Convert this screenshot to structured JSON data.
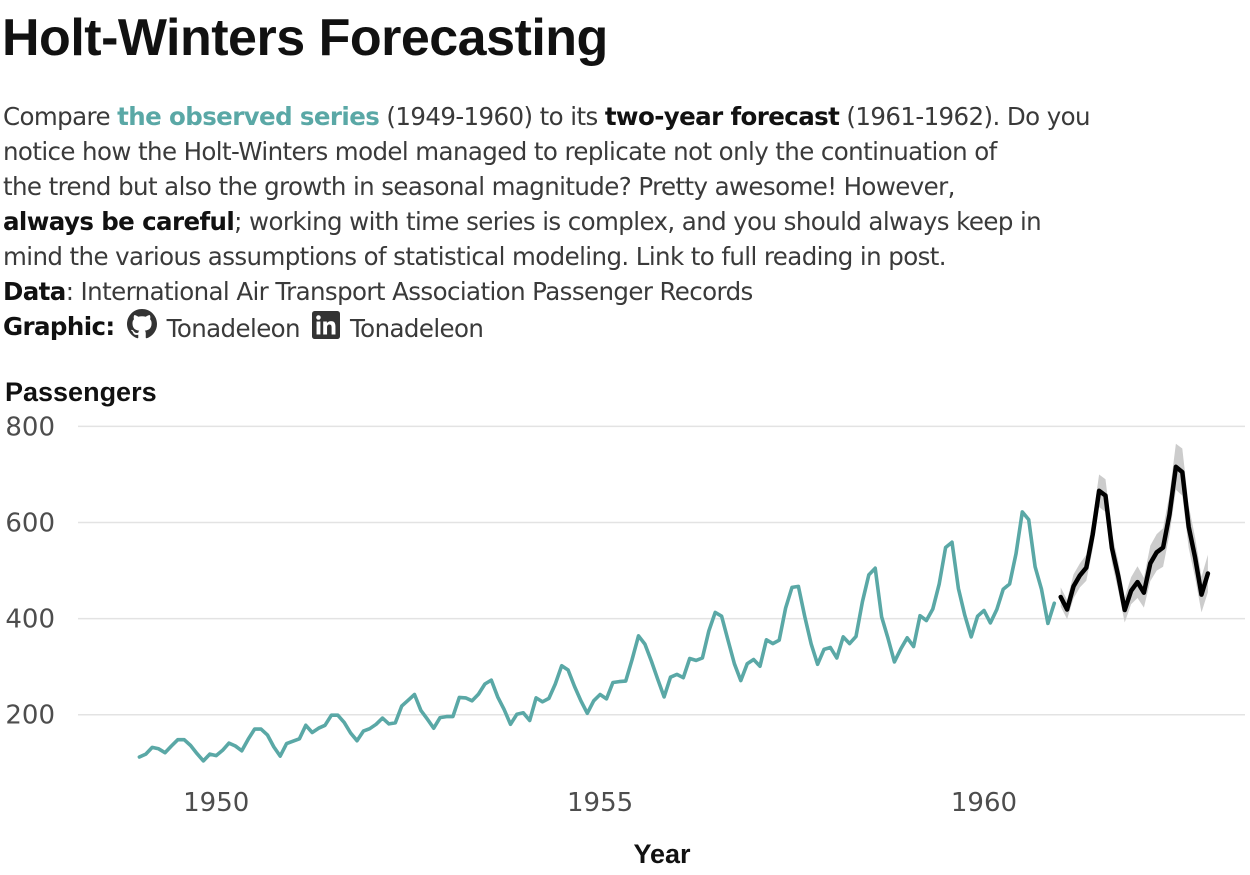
{
  "title": "Holt-Winters Forecasting",
  "subtitle": {
    "l1_a": "Compare ",
    "l1_b": "the observed series",
    "l1_c": " (1949-1960) to its ",
    "l1_d": "two-year forecast",
    "l1_e": " (1961-1962). Do you",
    "l2": "notice how the Holt-Winters model managed to replicate not only the continuation of",
    "l3": "the trend but also the growth in seasonal magnitude? Pretty awesome! However,",
    "l4_a": "always be careful",
    "l4_b": "; working with time series is complex, and you should always keep in",
    "l5": "mind the various assumptions of statistical modeling. Link to full reading in post.",
    "data_label": "Data",
    "data_text": ": International Air Transport Association Passenger Records",
    "graphic_label": "Graphic:",
    "github_icon": "github-icon",
    "github_handle": "Tonadeleon",
    "linkedin_icon": "linkedin-icon",
    "linkedin_handle": "Tonadeleon"
  },
  "colors": {
    "observed": "#5aa8a6",
    "forecast": "#000000",
    "interval": "#cccccc",
    "grid": "#e3e3e3",
    "text": "#333333"
  },
  "chart_data": {
    "type": "line",
    "title": "",
    "xlabel": "Year",
    "ylabel": "Passengers",
    "xlim": [
      1948.2,
      1963.4
    ],
    "ylim": [
      60,
      830
    ],
    "x_ticks": [
      1950,
      1955,
      1960
    ],
    "y_ticks": [
      200,
      400,
      600,
      800
    ],
    "grid": "horizontal",
    "legend": "none (colors explained in subtitle)",
    "series": [
      {
        "start": 1949.0,
        "step": 0.0833333,
        "values": [
          112,
          118,
          132,
          129,
          121,
          135,
          148,
          148,
          136,
          119,
          104,
          118,
          115,
          126,
          141,
          135,
          125,
          149,
          170,
          170,
          158,
          133,
          114,
          140,
          145,
          150,
          178,
          163,
          172,
          178,
          199,
          199,
          184,
          162,
          146,
          166,
          171,
          180,
          193,
          181,
          183,
          218,
          230,
          242,
          209,
          191,
          172,
          194,
          196,
          196,
          236,
          235,
          229,
          243,
          264,
          272,
          237,
          211,
          180,
          201,
          204,
          188,
          235,
          227,
          234,
          264,
          302,
          293,
          259,
          229,
          203,
          229,
          242,
          233,
          267,
          269,
          270,
          315,
          364,
          347,
          312,
          274,
          237,
          278,
          284,
          277,
          317,
          313,
          318,
          374,
          413,
          405,
          355,
          306,
          271,
          306,
          315,
          301,
          356,
          348,
          355,
          422,
          465,
          467,
          404,
          347,
          305,
          336,
          340,
          318,
          362,
          348,
          363,
          435,
          491,
          505,
          404,
          359,
          310,
          337,
          360,
          342,
          406,
          396,
          420,
          472,
          548,
          559,
          463,
          407,
          362,
          405,
          417,
          391,
          419,
          461,
          472,
          535,
          622,
          606,
          508,
          461,
          390,
          432
        ]
      },
      {
        "start": 1961.0,
        "step": 0.0833333,
        "values": [
          445,
          419,
          467,
          490,
          506,
          575,
          666,
          656,
          547,
          488,
          418,
          458,
          476,
          454,
          515,
          538,
          548,
          617,
          716,
          705,
          591,
          527,
          450,
          494
        ],
        "lower": [
          425,
          399,
          442,
          465,
          479,
          544,
          632,
          622,
          516,
          458,
          392,
          430,
          443,
          423,
          478,
          500,
          508,
          575,
          668,
          656,
          547,
          485,
          413,
          455
        ],
        "upper": [
          465,
          439,
          492,
          515,
          533,
          606,
          700,
          690,
          578,
          518,
          444,
          486,
          509,
          485,
          552,
          576,
          588,
          659,
          764,
          754,
          635,
          569,
          487,
          533
        ]
      }
    ]
  }
}
